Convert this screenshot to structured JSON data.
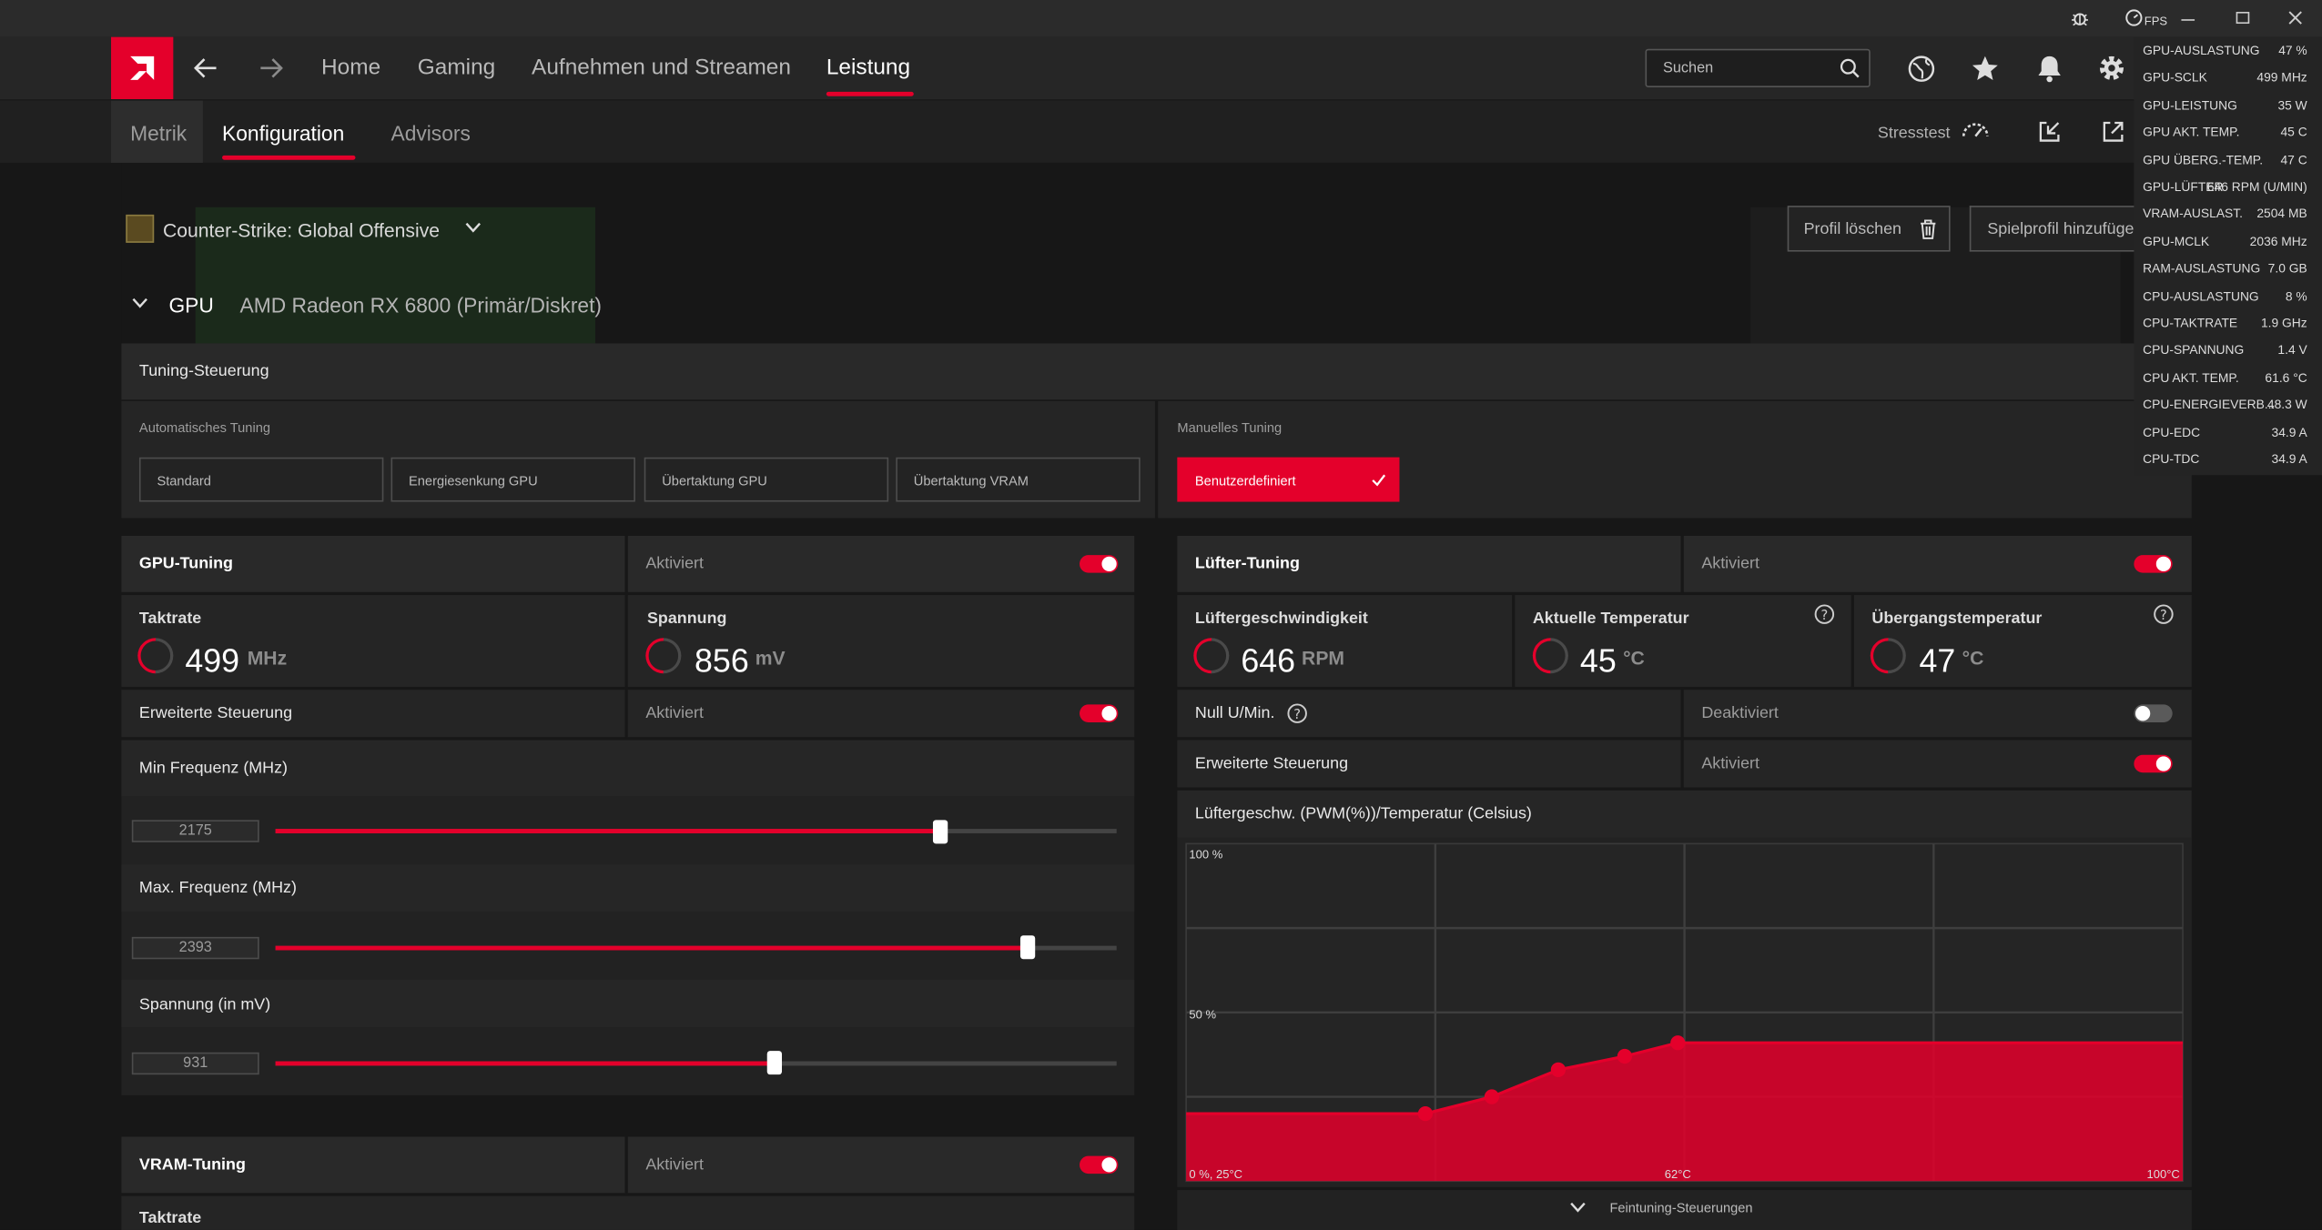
{
  "titlebar": {
    "fps_label": "FPS",
    "window_buttons": [
      "minimize-icon",
      "restore-icon",
      "close-icon"
    ]
  },
  "nav": {
    "items": [
      "Home",
      "Gaming",
      "Aufnehmen und Streamen",
      "Leistung"
    ],
    "active": "Leistung",
    "search_placeholder": "Suchen"
  },
  "subnav": {
    "tabs": [
      "Metrik",
      "Konfiguration",
      "Advisors"
    ],
    "active": "Konfiguration",
    "stresstest_label": "Stresstest"
  },
  "profile": {
    "game": "Counter-Strike: Global Offensive",
    "delete_label": "Profil löschen",
    "add_label": "Spielprofil hinzufügen"
  },
  "gpu": {
    "section": "GPU",
    "name": "AMD Radeon RX 6800 (Primär/Diskret)"
  },
  "tuning": {
    "header": "Tuning-Steuerung",
    "auto_label": "Automatisches Tuning",
    "auto_options": [
      "Standard",
      "Energiesenkung GPU",
      "Übertaktung GPU",
      "Übertaktung VRAM"
    ],
    "manual_label": "Manuelles Tuning",
    "manual_option": "Benutzerdefiniert"
  },
  "gpu_tuning": {
    "title": "GPU-Tuning",
    "status": "Aktiviert",
    "enabled": true,
    "clock_label": "Taktrate",
    "clock_value": "499",
    "clock_unit": "MHz",
    "voltage_label": "Spannung",
    "voltage_value": "856",
    "voltage_unit": "mV",
    "advanced_label": "Erweiterte Steuerung",
    "advanced_status": "Aktiviert",
    "advanced_enabled": true,
    "min_freq_label": "Min Frequenz (MHz)",
    "min_freq_value": "2175",
    "min_freq_fraction": 0.79,
    "max_freq_label": "Max. Frequenz (MHz)",
    "max_freq_value": "2393",
    "max_freq_fraction": 0.895,
    "voltage_set_label": "Spannung (in mV)",
    "voltage_set_value": "931",
    "voltage_set_fraction": 0.593
  },
  "vram_tuning": {
    "title": "VRAM-Tuning",
    "status": "Aktiviert",
    "enabled": true,
    "clock_label": "Taktrate"
  },
  "fan_tuning": {
    "title": "Lüfter-Tuning",
    "status": "Aktiviert",
    "enabled": true,
    "speed_label": "Lüftergeschwindigkeit",
    "speed_value": "646",
    "speed_unit": "RPM",
    "cur_temp_label": "Aktuelle Temperatur",
    "cur_temp_value": "45",
    "cur_temp_unit": "°C",
    "junction_label": "Übergangstemperatur",
    "junction_value": "47",
    "junction_unit": "°C",
    "zero_rpm_label": "Null U/Min.",
    "zero_rpm_status": "Deaktiviert",
    "zero_rpm_enabled": false,
    "advanced_label": "Erweiterte Steuerung",
    "advanced_status": "Aktiviert",
    "advanced_enabled": true,
    "curve_title": "Lüftergeschw. (PWM(%))/Temperatur (Celsius)",
    "fine_tuning_label": "Feintuning-Steuerungen"
  },
  "chart_data": {
    "type": "area",
    "title": "Lüftergeschw. (PWM(%))/Temperatur (Celsius)",
    "y_tick_labels": [
      "100 %",
      "50 %"
    ],
    "x_tick_labels": [
      "0 %, 25°C",
      "62°C",
      "100°C"
    ],
    "xlim": [
      25,
      100
    ],
    "ylim": [
      0,
      100
    ],
    "points": [
      {
        "x": 25,
        "y": 20
      },
      {
        "x": 43,
        "y": 20
      },
      {
        "x": 48,
        "y": 25
      },
      {
        "x": 53,
        "y": 33
      },
      {
        "x": 58,
        "y": 37
      },
      {
        "x": 62,
        "y": 41
      },
      {
        "x": 100,
        "y": 41
      }
    ],
    "handles": [
      {
        "x": 43,
        "y": 20
      },
      {
        "x": 48,
        "y": 25
      },
      {
        "x": 53,
        "y": 33
      },
      {
        "x": 58,
        "y": 37
      },
      {
        "x": 62,
        "y": 41
      }
    ],
    "color": "#e4002b",
    "grid": true
  },
  "overlay": {
    "rows": [
      {
        "label": "GPU-AUSLASTUNG",
        "value": "47 %"
      },
      {
        "label": "GPU-SCLK",
        "value": "499 MHz"
      },
      {
        "label": "GPU-LEISTUNG",
        "value": "35 W"
      },
      {
        "label": "GPU AKT. TEMP.",
        "value": "45 C"
      },
      {
        "label": "GPU ÜBERG.-TEMP.",
        "value": "47 C"
      },
      {
        "label": "GPU-LÜFTER",
        "value": "646 RPM (U/MIN)"
      },
      {
        "label": "VRAM-AUSLAST.",
        "value": "2504 MB"
      },
      {
        "label": "GPU-MCLK",
        "value": "2036 MHz"
      },
      {
        "label": "RAM-AUSLASTUNG",
        "value": "7.0 GB"
      },
      {
        "label": "CPU-AUSLASTUNG",
        "value": "8 %"
      },
      {
        "label": "CPU-TAKTRATE",
        "value": "1.9 GHz"
      },
      {
        "label": "CPU-SPANNUNG",
        "value": "1.4 V"
      },
      {
        "label": "CPU AKT. TEMP.",
        "value": "61.6 °C"
      },
      {
        "label": "CPU-ENERGIEVERB...",
        "value": "48.3 W"
      },
      {
        "label": "CPU-EDC",
        "value": "34.9 A"
      },
      {
        "label": "CPU-TDC",
        "value": "34.9 A"
      }
    ]
  },
  "colors": {
    "accent": "#e4002b",
    "panel": "#252525",
    "background": "#171717"
  }
}
